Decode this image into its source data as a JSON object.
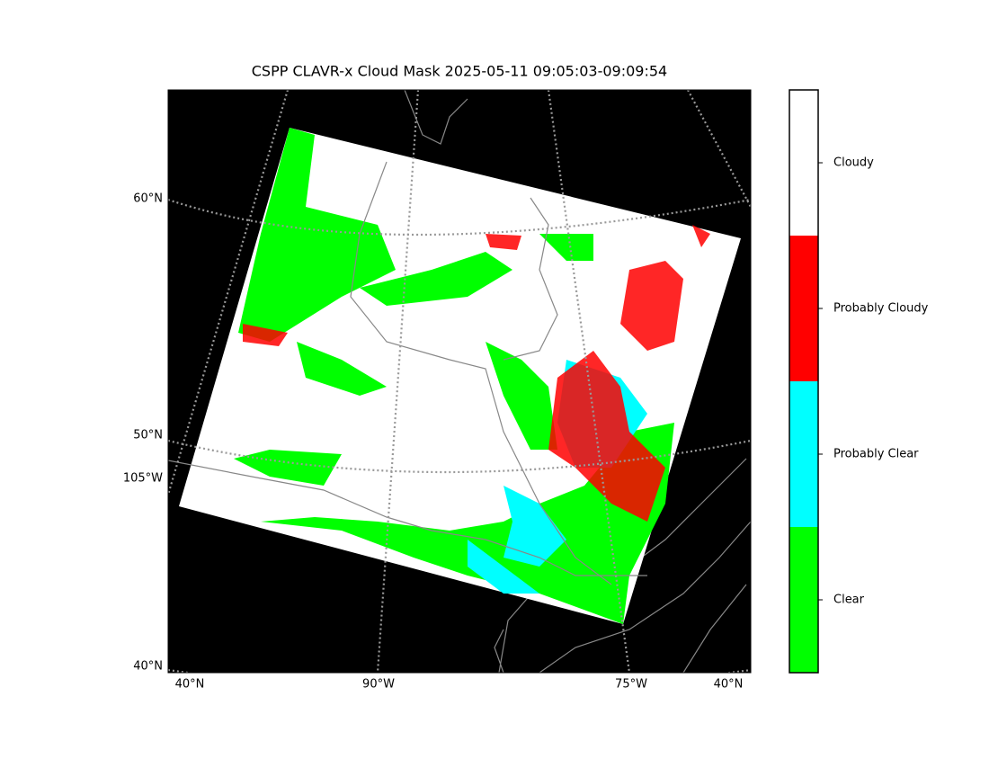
{
  "title": "CSPP CLAVR-x Cloud Mask 2025-05-11 09:05:03-09:09:54",
  "map": {
    "left_labels": [
      "60°N",
      "50°N",
      "105°W",
      "40°N"
    ],
    "bottom_labels": [
      "40°N",
      "90°W",
      "75°W",
      "40°N"
    ]
  },
  "colorbar": {
    "classes": [
      {
        "label": "Cloudy",
        "color": "#ffffff"
      },
      {
        "label": "Probably Cloudy",
        "color": "#ff0000"
      },
      {
        "label": "Probably Clear",
        "color": "#00ffff"
      },
      {
        "label": "Clear",
        "color": "#00ff00"
      }
    ]
  }
}
